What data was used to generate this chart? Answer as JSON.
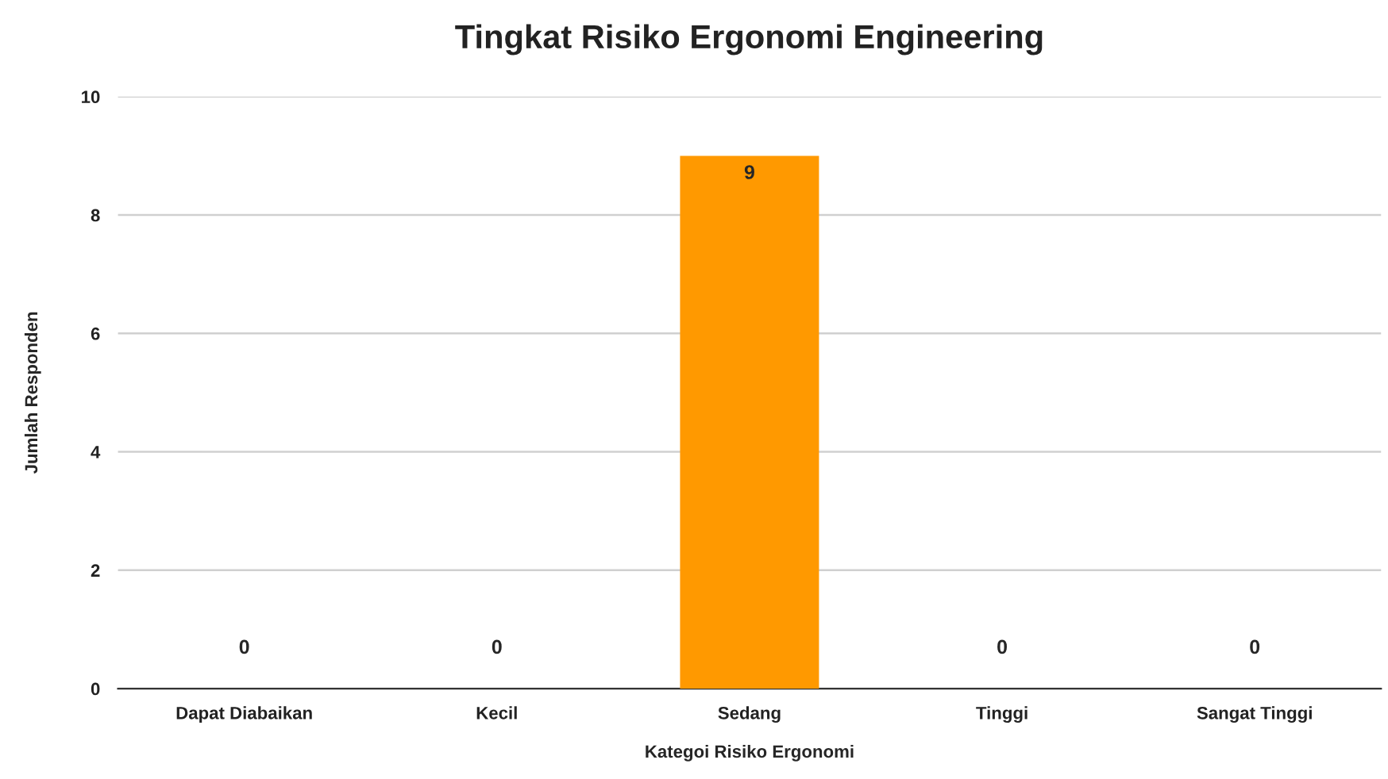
{
  "chart_data": {
    "type": "bar",
    "title": "Tingkat Risiko Ergonomi Engineering",
    "xlabel": "Kategoi Risiko Ergonomi",
    "ylabel": "Jumlah Responden",
    "categories": [
      "Dapat Diabaikan",
      "Kecil",
      "Sedang",
      "Tinggi",
      "Sangat Tinggi"
    ],
    "values": [
      0,
      0,
      9,
      0,
      0
    ],
    "color": "#ff9900",
    "ylim": [
      0,
      10
    ],
    "yticks": [
      0,
      2,
      4,
      6,
      8,
      10
    ],
    "grid": "y",
    "data_labels": true
  }
}
